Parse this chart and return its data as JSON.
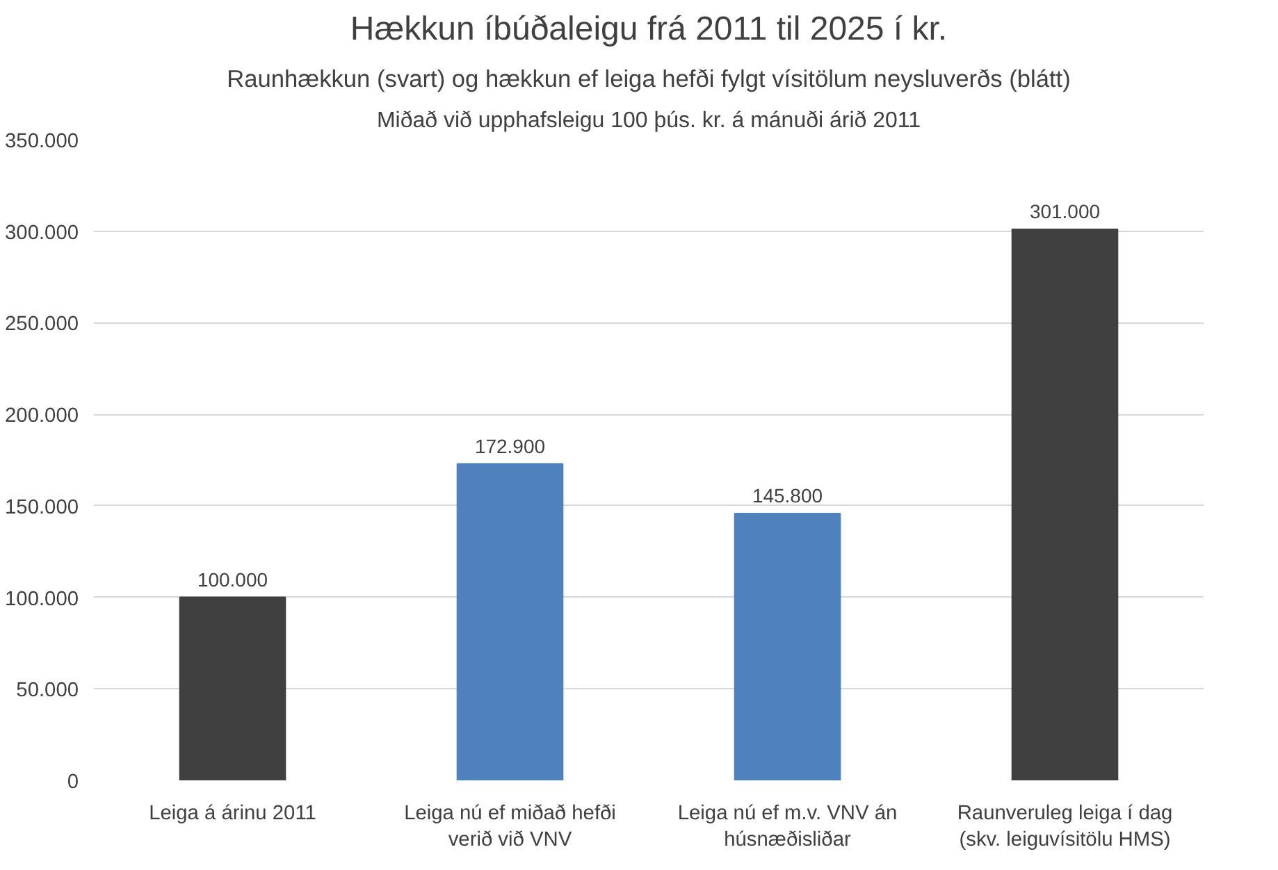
{
  "chart_data": {
    "type": "bar",
    "title": "Hækkun íbúðaleigu frá 2011 til 2025 í kr.",
    "subtitle": "Raunhækkun (svart) og hækkun ef leiga hefði fylgt vísitölum neysluverðs (blátt)",
    "annotations": [
      "Miðað við upphafsleigu 100 þús. kr. á mánuði árið 2011"
    ],
    "categories": [
      "Leiga á árinu 2011",
      "Leiga nú ef miðað hefði\nverið við VNV",
      "Leiga nú ef m.v. VNV án\nhúsnæðisliðar",
      "Raunveruleg leiga í dag\n(skv. leiguvísitölu HMS)"
    ],
    "values": [
      100000,
      172900,
      145800,
      301000
    ],
    "colors": [
      "#404040",
      "#4f81bd",
      "#4f81bd",
      "#404040"
    ],
    "value_labels": [
      "100.000",
      "172.900",
      "145.800",
      "301.000"
    ],
    "ylim": [
      0,
      350000
    ],
    "yticks": [
      {
        "value": 0,
        "label": "0"
      },
      {
        "value": 50000,
        "label": "50.000"
      },
      {
        "value": 100000,
        "label": "100.000"
      },
      {
        "value": 150000,
        "label": "150.000"
      },
      {
        "value": 200000,
        "label": "200.000"
      },
      {
        "value": 250000,
        "label": "250.000"
      },
      {
        "value": 300000,
        "label": "300.000"
      },
      {
        "value": 350000,
        "label": "350.000"
      }
    ],
    "grid": "y"
  }
}
